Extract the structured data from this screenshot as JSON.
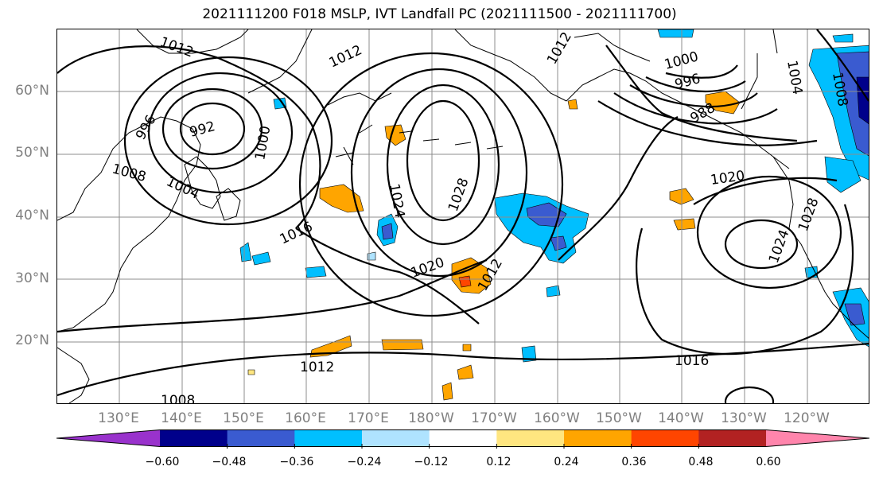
{
  "title": "2021111200 F018 MSLP, IVT Landfall PC (2021111500 - 2021111700)",
  "map": {
    "projection": "PlateCarree",
    "lon_range": [
      "122°E",
      "113°W"
    ],
    "lat_range": [
      "10°N",
      "70°N"
    ],
    "lat_labels": [
      "60°N",
      "50°N",
      "40°N",
      "30°N",
      "20°N"
    ],
    "lon_labels": [
      "130°E",
      "140°E",
      "150°E",
      "160°E",
      "170°E",
      "180°W",
      "170°W",
      "160°W",
      "150°W",
      "140°W",
      "130°W",
      "120°W"
    ],
    "gridlines": true,
    "gridline_color": "#8c8c8c",
    "coastline_color": "#000000",
    "contour_color": "#000000",
    "mslp_contour_labels": [
      "1012",
      "1012",
      "1012",
      "992",
      "996",
      "1000",
      "1008",
      "1004",
      "1016",
      "1024",
      "1028",
      "1020",
      "1012",
      "1012",
      "1016",
      "1008",
      "1000",
      "996",
      "988",
      "1004",
      "1008",
      "1020",
      "1024",
      "1028"
    ]
  },
  "colorbar": {
    "tick_labels": [
      "−0.60",
      "−0.48",
      "−0.36",
      "−0.24",
      "−0.12",
      "0.12",
      "0.24",
      "0.36",
      "0.48",
      "0.60"
    ],
    "colors": [
      "#9932cc",
      "#00008b",
      "#3a5bd0",
      "#00bfff",
      "#afe3ff",
      "#ffffff",
      "#ffe680",
      "#ffa500",
      "#ff4500",
      "#b22222",
      "#ff85ac"
    ],
    "extend": "both"
  }
}
